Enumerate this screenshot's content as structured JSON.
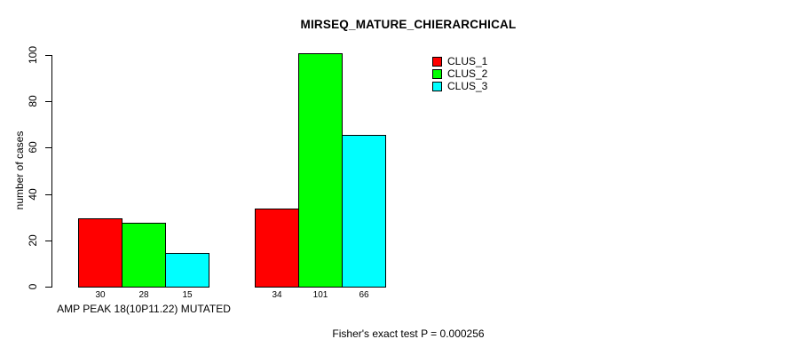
{
  "title": "MIRSEQ_MATURE_CHIERARCHICAL",
  "footer": {
    "note": "Fisher's exact test P = 0.000256"
  },
  "chart_data": {
    "type": "bar",
    "title": "MIRSEQ_MATURE_CHIERARCHICAL",
    "xlabel": "",
    "ylabel": "number of cases",
    "ylim": [
      0,
      100
    ],
    "yticks": [
      0,
      20,
      40,
      60,
      80,
      100
    ],
    "grid": false,
    "legend_position": "top-right",
    "categories": [
      "AMP PEAK 18(10P11.22) MUTATED",
      ""
    ],
    "series": [
      {
        "name": "CLUS_1",
        "color": "#ff0000",
        "values": [
          30,
          34
        ]
      },
      {
        "name": "CLUS_2",
        "color": "#00ff00",
        "values": [
          28,
          101
        ]
      },
      {
        "name": "CLUS_3",
        "color": "#00ffff",
        "values": [
          15,
          66
        ]
      }
    ],
    "bar_value_labels": [
      [
        30,
        28,
        15
      ],
      [
        34,
        101,
        66
      ]
    ],
    "annotation": "Fisher's exact test P = 0.000256",
    "colors": {
      "background": "#ffffff",
      "axis": "#000000",
      "text": "#000000"
    }
  }
}
